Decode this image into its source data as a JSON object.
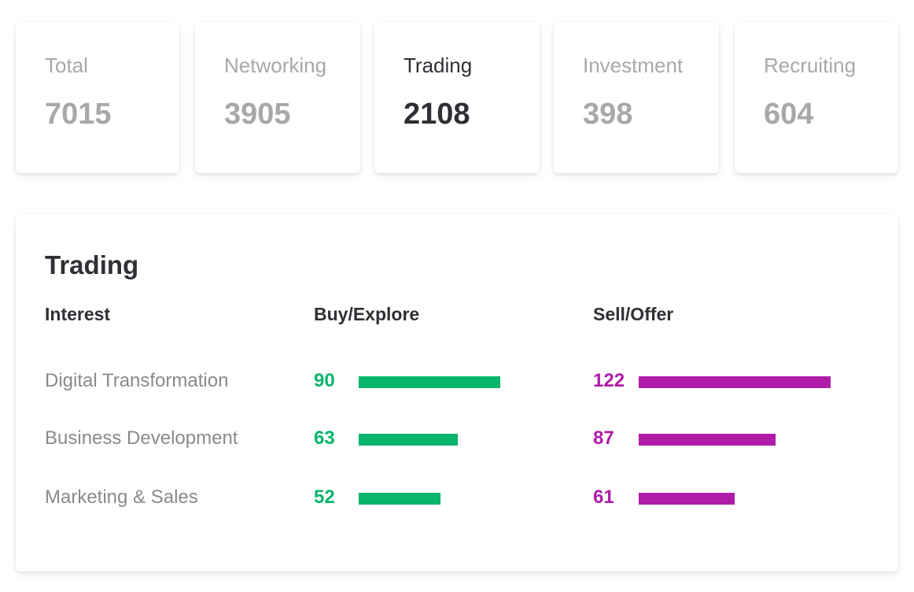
{
  "stats": [
    {
      "label": "Total",
      "value": "7015",
      "active": false
    },
    {
      "label": "Networking",
      "value": "3905",
      "active": false
    },
    {
      "label": "Trading",
      "value": "2108",
      "active": true
    },
    {
      "label": "Investment",
      "value": "398",
      "active": false
    },
    {
      "label": "Recruiting",
      "value": "604",
      "active": false
    }
  ],
  "panel": {
    "title": "Trading",
    "headers": {
      "interest": "Interest",
      "buy": "Buy/Explore",
      "sell": "Sell/Offer"
    }
  },
  "chart_data": {
    "type": "bar",
    "title": "Trading",
    "categories": [
      "Digital Transformation",
      "Business Development",
      "Marketing & Sales"
    ],
    "series": [
      {
        "name": "Buy/Explore",
        "values": [
          90,
          63,
          52
        ],
        "color": "#07b56b"
      },
      {
        "name": "Sell/Offer",
        "values": [
          122,
          87,
          61
        ],
        "color": "#b01ba8"
      }
    ]
  }
}
